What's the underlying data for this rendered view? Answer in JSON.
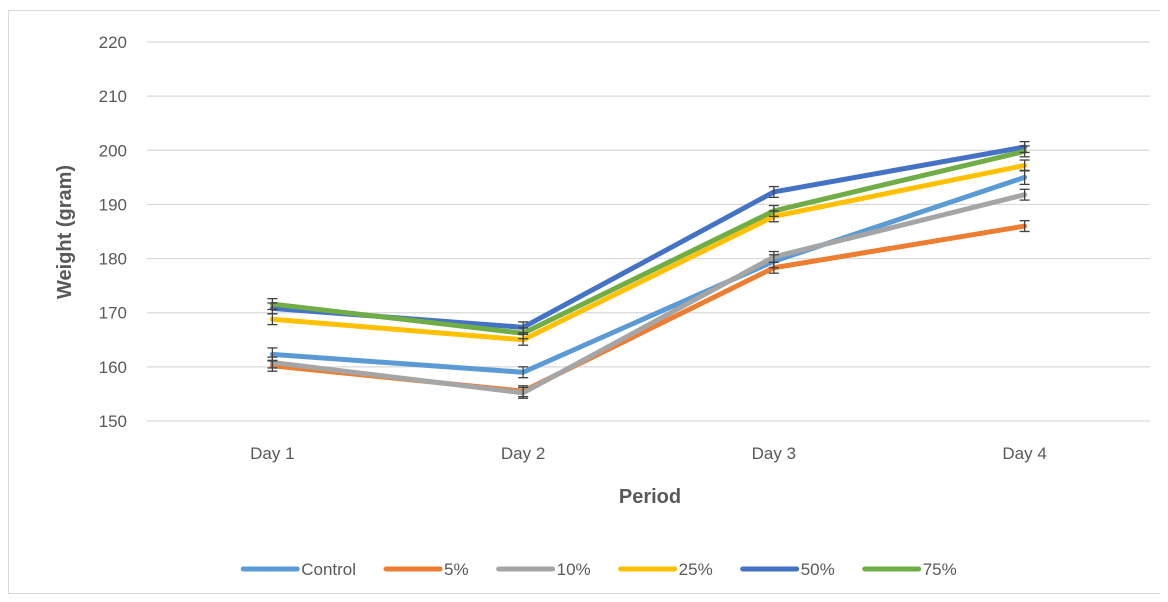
{
  "chart_data": {
    "type": "line",
    "title": "",
    "xlabel": "Period",
    "ylabel": "Weight (gram)",
    "categories": [
      "Day 1",
      "Day 2",
      "Day 3",
      "Day 4"
    ],
    "ylim": [
      150,
      220
    ],
    "yticks": [
      150,
      160,
      170,
      180,
      190,
      200,
      210,
      220
    ],
    "grid": true,
    "legend": "bottom",
    "error_bars": true,
    "series": [
      {
        "name": "Control",
        "color": "#5b9bd5",
        "values": [
          162.3,
          159.0,
          179.5,
          195.0
        ],
        "error": [
          1.2,
          1.0,
          1.2,
          1.3
        ]
      },
      {
        "name": "5%",
        "color": "#ed7d31",
        "values": [
          160.2,
          155.5,
          178.3,
          186.0
        ],
        "error": [
          1.0,
          1.0,
          1.0,
          1.0
        ]
      },
      {
        "name": "10%",
        "color": "#a5a5a5",
        "values": [
          160.8,
          155.2,
          180.3,
          191.8
        ],
        "error": [
          1.0,
          1.0,
          1.0,
          1.0
        ]
      },
      {
        "name": "25%",
        "color": "#ffc000",
        "values": [
          168.8,
          165.0,
          187.8,
          197.2
        ],
        "error": [
          1.0,
          1.0,
          1.0,
          1.0
        ]
      },
      {
        "name": "50%",
        "color": "#4472c4",
        "values": [
          170.8,
          167.3,
          192.3,
          200.6
        ],
        "error": [
          1.0,
          1.0,
          1.0,
          1.0
        ]
      },
      {
        "name": "75%",
        "color": "#70ad47",
        "values": [
          171.6,
          166.2,
          188.8,
          199.8
        ],
        "error": [
          1.0,
          1.0,
          1.0,
          1.0
        ]
      }
    ]
  }
}
